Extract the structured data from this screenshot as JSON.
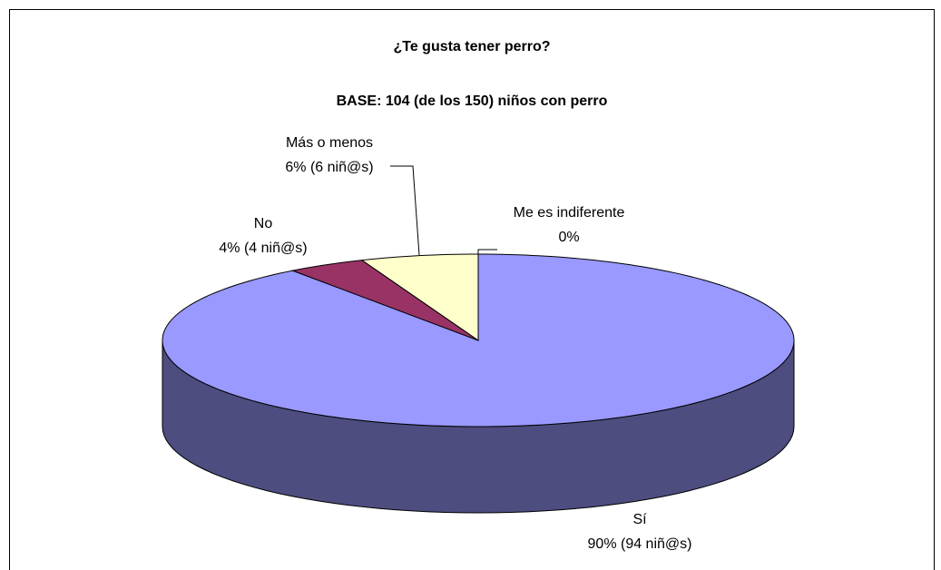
{
  "chart_data": {
    "type": "pie3d",
    "title": "¿Te gusta tener perro?",
    "subtitle": "BASE: 104 (de los 150) niños con perro",
    "categories": [
      "Sí",
      "No",
      "Más o menos",
      "Me es indiferente"
    ],
    "values": [
      90,
      4,
      6,
      0
    ],
    "value_labels": [
      "90% (94 niñ@s)",
      "4% (4 niñ@s)",
      "6% (6 niñ@s)",
      "0%"
    ],
    "colors": [
      "#9999ff",
      "#993366",
      "#ffffcc",
      "#ccffff"
    ]
  }
}
